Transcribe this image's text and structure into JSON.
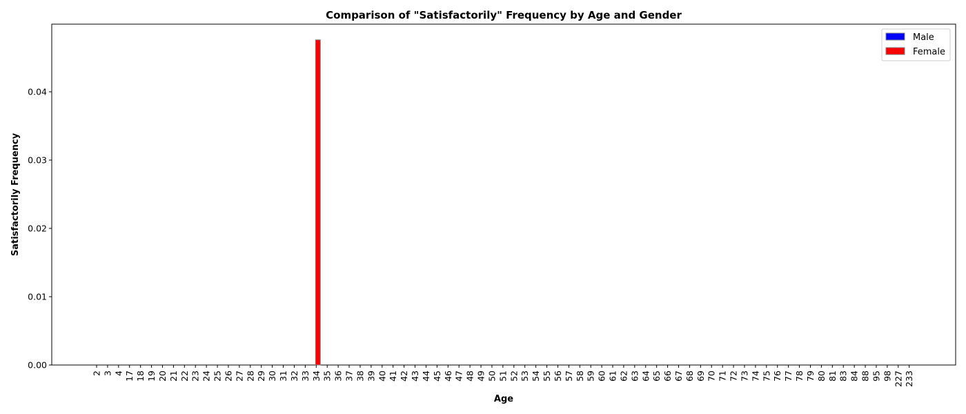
{
  "chart_data": {
    "type": "bar",
    "title": "Comparison of \"Satisfactorily\" Frequency by Age and Gender",
    "xlabel": "Age",
    "ylabel": "Satisfactorily Frequency",
    "ylim": [
      0,
      0.0499
    ],
    "yticks": [
      "0.00",
      "0.01",
      "0.02",
      "0.03",
      "0.04"
    ],
    "ytick_values": [
      0,
      0.01,
      0.02,
      0.03,
      0.04
    ],
    "categories": [
      "2",
      "3",
      "4",
      "17",
      "18",
      "19",
      "20",
      "21",
      "22",
      "23",
      "24",
      "25",
      "26",
      "27",
      "28",
      "29",
      "30",
      "31",
      "32",
      "33",
      "34",
      "35",
      "36",
      "37",
      "38",
      "39",
      "40",
      "41",
      "42",
      "43",
      "44",
      "45",
      "46",
      "47",
      "48",
      "49",
      "50",
      "51",
      "52",
      "53",
      "54",
      "55",
      "56",
      "57",
      "58",
      "59",
      "60",
      "61",
      "62",
      "63",
      "64",
      "65",
      "66",
      "67",
      "68",
      "69",
      "70",
      "71",
      "72",
      "73",
      "74",
      "75",
      "76",
      "77",
      "78",
      "79",
      "80",
      "81",
      "83",
      "84",
      "88",
      "95",
      "98",
      "227",
      "233"
    ],
    "series": [
      {
        "name": "Male",
        "color": "#0000ff",
        "values": [
          0,
          0,
          0,
          0,
          0,
          0,
          0,
          0,
          0,
          0,
          0,
          0,
          0,
          0,
          0,
          0,
          0,
          0,
          0,
          0,
          0,
          0,
          0,
          0,
          0,
          0,
          0,
          0,
          0,
          0,
          0,
          0,
          0,
          0,
          0,
          0,
          0,
          0,
          0,
          0,
          0,
          0,
          0,
          0,
          0,
          0,
          0,
          0,
          0,
          0,
          0,
          0,
          0,
          0,
          0,
          0,
          0,
          0,
          0,
          0,
          0,
          0,
          0,
          0,
          0,
          0,
          0,
          0,
          0,
          0,
          0,
          0,
          0,
          0,
          0
        ]
      },
      {
        "name": "Female",
        "color": "#ff0000",
        "values": [
          0,
          0,
          0,
          0,
          0,
          0,
          0,
          0,
          0,
          0,
          0,
          0,
          0,
          0,
          0,
          0,
          0,
          0,
          0,
          0,
          0.0476,
          0,
          0,
          0,
          0,
          0,
          0,
          0,
          0,
          0,
          0,
          0,
          0,
          0,
          0,
          0,
          0,
          0,
          0,
          0,
          0,
          0,
          0,
          0,
          0,
          0,
          0,
          0,
          0,
          0,
          0,
          0,
          0,
          0,
          0,
          0,
          0,
          0,
          0,
          0,
          0,
          0,
          0,
          0,
          0,
          0,
          0,
          0,
          0,
          0,
          0,
          0,
          0,
          0,
          0
        ]
      }
    ],
    "legend": "top-right",
    "grid": false,
    "bar_edge_color": "#808080"
  }
}
